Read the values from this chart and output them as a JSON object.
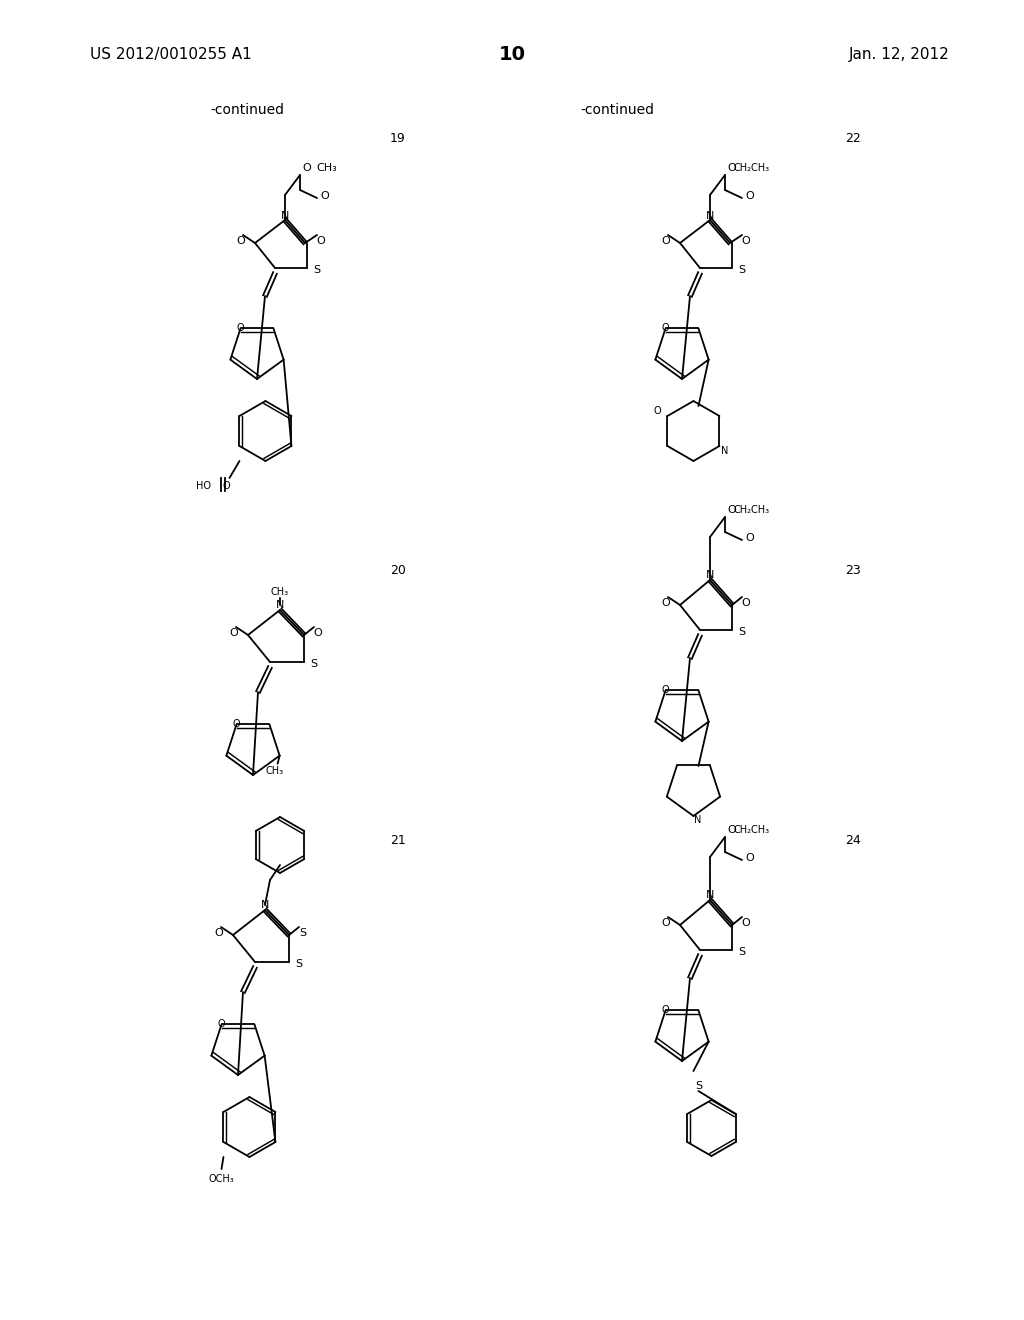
{
  "page_number": "10",
  "patent_number": "US 2012/0010255 A1",
  "patent_date": "Jan. 12, 2012",
  "continued_labels": [
    "-continued",
    "-continued"
  ],
  "compound_numbers": [
    "19",
    "20",
    "21",
    "22",
    "23",
    "24"
  ],
  "background_color": "#ffffff",
  "line_color": "#000000",
  "font_size_header": 11,
  "font_size_compound": 9,
  "font_size_atom": 8
}
